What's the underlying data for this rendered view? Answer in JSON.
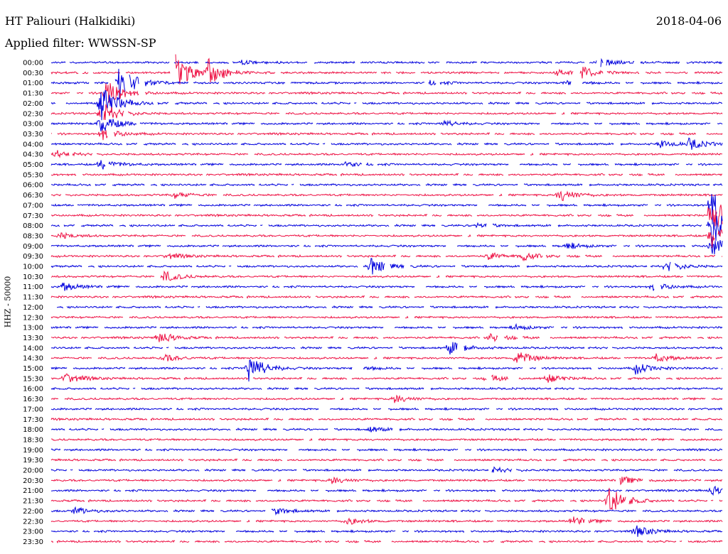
{
  "header": {
    "station": "HT Paliouri (Halkidiki)",
    "date": "2018-04-06",
    "filter": "Applied filter: WWSSN-SP"
  },
  "chart_data": {
    "type": "line",
    "title": "HT Paliouri (Halkidiki)",
    "subtitle": "Applied filter: WWSSN-SP",
    "date": "2018-04-06",
    "ylabel": "HHZ - 50000",
    "xlabel": "",
    "colors": {
      "even_rows": "#0000dd",
      "odd_rows": "#ee1144"
    },
    "row_minutes": 30,
    "grid": false,
    "rows": [
      {
        "label": "00:00",
        "series": "blue",
        "events": [
          {
            "minute": 24.5,
            "amplitude": 6
          },
          {
            "minute": 8.5,
            "amplitude": 3
          }
        ]
      },
      {
        "label": "00:30",
        "series": "red",
        "events": [
          {
            "minute": 5.5,
            "amplitude": 30
          },
          {
            "minute": 7.0,
            "amplitude": 18
          },
          {
            "minute": 23.7,
            "amplitude": 8
          },
          {
            "minute": 22.6,
            "amplitude": 5
          }
        ]
      },
      {
        "label": "01:00",
        "series": "blue",
        "events": [
          {
            "minute": 3.0,
            "amplitude": 30
          },
          {
            "minute": 16.8,
            "amplitude": 4
          },
          {
            "minute": 23.0,
            "amplitude": 4
          }
        ]
      },
      {
        "label": "01:30",
        "series": "red",
        "events": [
          {
            "minute": 2.4,
            "amplitude": 22
          }
        ]
      },
      {
        "label": "02:00",
        "series": "blue",
        "events": [
          {
            "minute": 2.2,
            "amplitude": 30
          }
        ]
      },
      {
        "label": "02:30",
        "series": "red",
        "events": [
          {
            "minute": 2.2,
            "amplitude": 18
          }
        ]
      },
      {
        "label": "03:00",
        "series": "blue",
        "events": [
          {
            "minute": 2.2,
            "amplitude": 14
          },
          {
            "minute": 17.5,
            "amplitude": 4
          }
        ]
      },
      {
        "label": "03:30",
        "series": "red",
        "events": [
          {
            "minute": 2.2,
            "amplitude": 10
          }
        ]
      },
      {
        "label": "04:00",
        "series": "blue",
        "events": [
          {
            "minute": 28.5,
            "amplitude": 8
          },
          {
            "minute": 27.2,
            "amplitude": 5
          }
        ]
      },
      {
        "label": "04:30",
        "series": "red",
        "events": [
          {
            "minute": 0.2,
            "amplitude": 5
          }
        ]
      },
      {
        "label": "05:00",
        "series": "blue",
        "events": [
          {
            "minute": 2.2,
            "amplitude": 8
          },
          {
            "minute": 13.1,
            "amplitude": 4
          }
        ]
      },
      {
        "label": "05:30",
        "series": "red",
        "events": []
      },
      {
        "label": "06:00",
        "series": "blue",
        "events": []
      },
      {
        "label": "06:30",
        "series": "red",
        "events": [
          {
            "minute": 22.7,
            "amplitude": 10
          },
          {
            "minute": 5.5,
            "amplitude": 4
          }
        ]
      },
      {
        "label": "07:00",
        "series": "blue",
        "events": [
          {
            "minute": 29.5,
            "amplitude": 30
          }
        ]
      },
      {
        "label": "07:30",
        "series": "red",
        "events": [
          {
            "minute": 29.5,
            "amplitude": 30
          }
        ]
      },
      {
        "label": "08:00",
        "series": "blue",
        "events": [
          {
            "minute": 29.5,
            "amplitude": 30
          },
          {
            "minute": 19.0,
            "amplitude": 4
          }
        ]
      },
      {
        "label": "08:30",
        "series": "red",
        "events": [
          {
            "minute": 29.5,
            "amplitude": 20
          },
          {
            "minute": 0.4,
            "amplitude": 4
          }
        ]
      },
      {
        "label": "09:00",
        "series": "blue",
        "events": [
          {
            "minute": 29.5,
            "amplitude": 14
          },
          {
            "minute": 23.0,
            "amplitude": 5
          }
        ]
      },
      {
        "label": "09:30",
        "series": "red",
        "events": [
          {
            "minute": 21.0,
            "amplitude": 6
          },
          {
            "minute": 19.5,
            "amplitude": 5
          },
          {
            "minute": 5.2,
            "amplitude": 4
          }
        ]
      },
      {
        "label": "10:00",
        "series": "blue",
        "events": [
          {
            "minute": 14.3,
            "amplitude": 12
          },
          {
            "minute": 27.5,
            "amplitude": 8
          }
        ]
      },
      {
        "label": "10:30",
        "series": "red",
        "events": [
          {
            "minute": 5.0,
            "amplitude": 8
          }
        ]
      },
      {
        "label": "11:00",
        "series": "blue",
        "events": [
          {
            "minute": 26.9,
            "amplitude": 6
          },
          {
            "minute": 0.5,
            "amplitude": 6
          }
        ]
      },
      {
        "label": "11:30",
        "series": "red",
        "events": []
      },
      {
        "label": "12:00",
        "series": "blue",
        "events": []
      },
      {
        "label": "12:30",
        "series": "red",
        "events": []
      },
      {
        "label": "13:00",
        "series": "blue",
        "events": [
          {
            "minute": 20.7,
            "amplitude": 4
          }
        ]
      },
      {
        "label": "13:30",
        "series": "red",
        "events": [
          {
            "minute": 4.8,
            "amplitude": 8
          },
          {
            "minute": 19.6,
            "amplitude": 6
          }
        ]
      },
      {
        "label": "14:00",
        "series": "blue",
        "events": [
          {
            "minute": 17.8,
            "amplitude": 10
          }
        ]
      },
      {
        "label": "14:30",
        "series": "red",
        "events": [
          {
            "minute": 20.8,
            "amplitude": 10
          },
          {
            "minute": 5.0,
            "amplitude": 5
          },
          {
            "minute": 27.0,
            "amplitude": 6
          }
        ]
      },
      {
        "label": "15:00",
        "series": "blue",
        "events": [
          {
            "minute": 8.8,
            "amplitude": 20
          },
          {
            "minute": 26.1,
            "amplitude": 8
          },
          {
            "minute": 13.5,
            "amplitude": 5
          }
        ]
      },
      {
        "label": "15:30",
        "series": "red",
        "events": [
          {
            "minute": 0.6,
            "amplitude": 8
          },
          {
            "minute": 22.2,
            "amplitude": 6
          },
          {
            "minute": 19.5,
            "amplitude": 5
          }
        ]
      },
      {
        "label": "16:00",
        "series": "blue",
        "events": []
      },
      {
        "label": "16:30",
        "series": "red",
        "events": [
          {
            "minute": 15.3,
            "amplitude": 6
          }
        ]
      },
      {
        "label": "17:00",
        "series": "blue",
        "events": []
      },
      {
        "label": "17:30",
        "series": "red",
        "events": []
      },
      {
        "label": "18:00",
        "series": "blue",
        "events": [
          {
            "minute": 14.2,
            "amplitude": 4
          }
        ]
      },
      {
        "label": "18:30",
        "series": "red",
        "events": []
      },
      {
        "label": "19:00",
        "series": "blue",
        "events": []
      },
      {
        "label": "19:30",
        "series": "red",
        "events": []
      },
      {
        "label": "20:00",
        "series": "blue",
        "events": [
          {
            "minute": 19.7,
            "amplitude": 4
          }
        ]
      },
      {
        "label": "20:30",
        "series": "red",
        "events": [
          {
            "minute": 25.4,
            "amplitude": 6
          },
          {
            "minute": 12.5,
            "amplitude": 5
          }
        ]
      },
      {
        "label": "21:00",
        "series": "blue",
        "events": [
          {
            "minute": 29.5,
            "amplitude": 6
          }
        ]
      },
      {
        "label": "21:30",
        "series": "red",
        "events": [
          {
            "minute": 24.9,
            "amplitude": 22
          }
        ]
      },
      {
        "label": "22:00",
        "series": "blue",
        "events": [
          {
            "minute": 10.0,
            "amplitude": 5
          },
          {
            "minute": 1.0,
            "amplitude": 5
          }
        ]
      },
      {
        "label": "22:30",
        "series": "red",
        "events": [
          {
            "minute": 23.3,
            "amplitude": 6
          },
          {
            "minute": 13.2,
            "amplitude": 5
          }
        ]
      },
      {
        "label": "23:00",
        "series": "blue",
        "events": [
          {
            "minute": 26.1,
            "amplitude": 8
          }
        ]
      },
      {
        "label": "23:30",
        "series": "red",
        "events": []
      }
    ]
  }
}
